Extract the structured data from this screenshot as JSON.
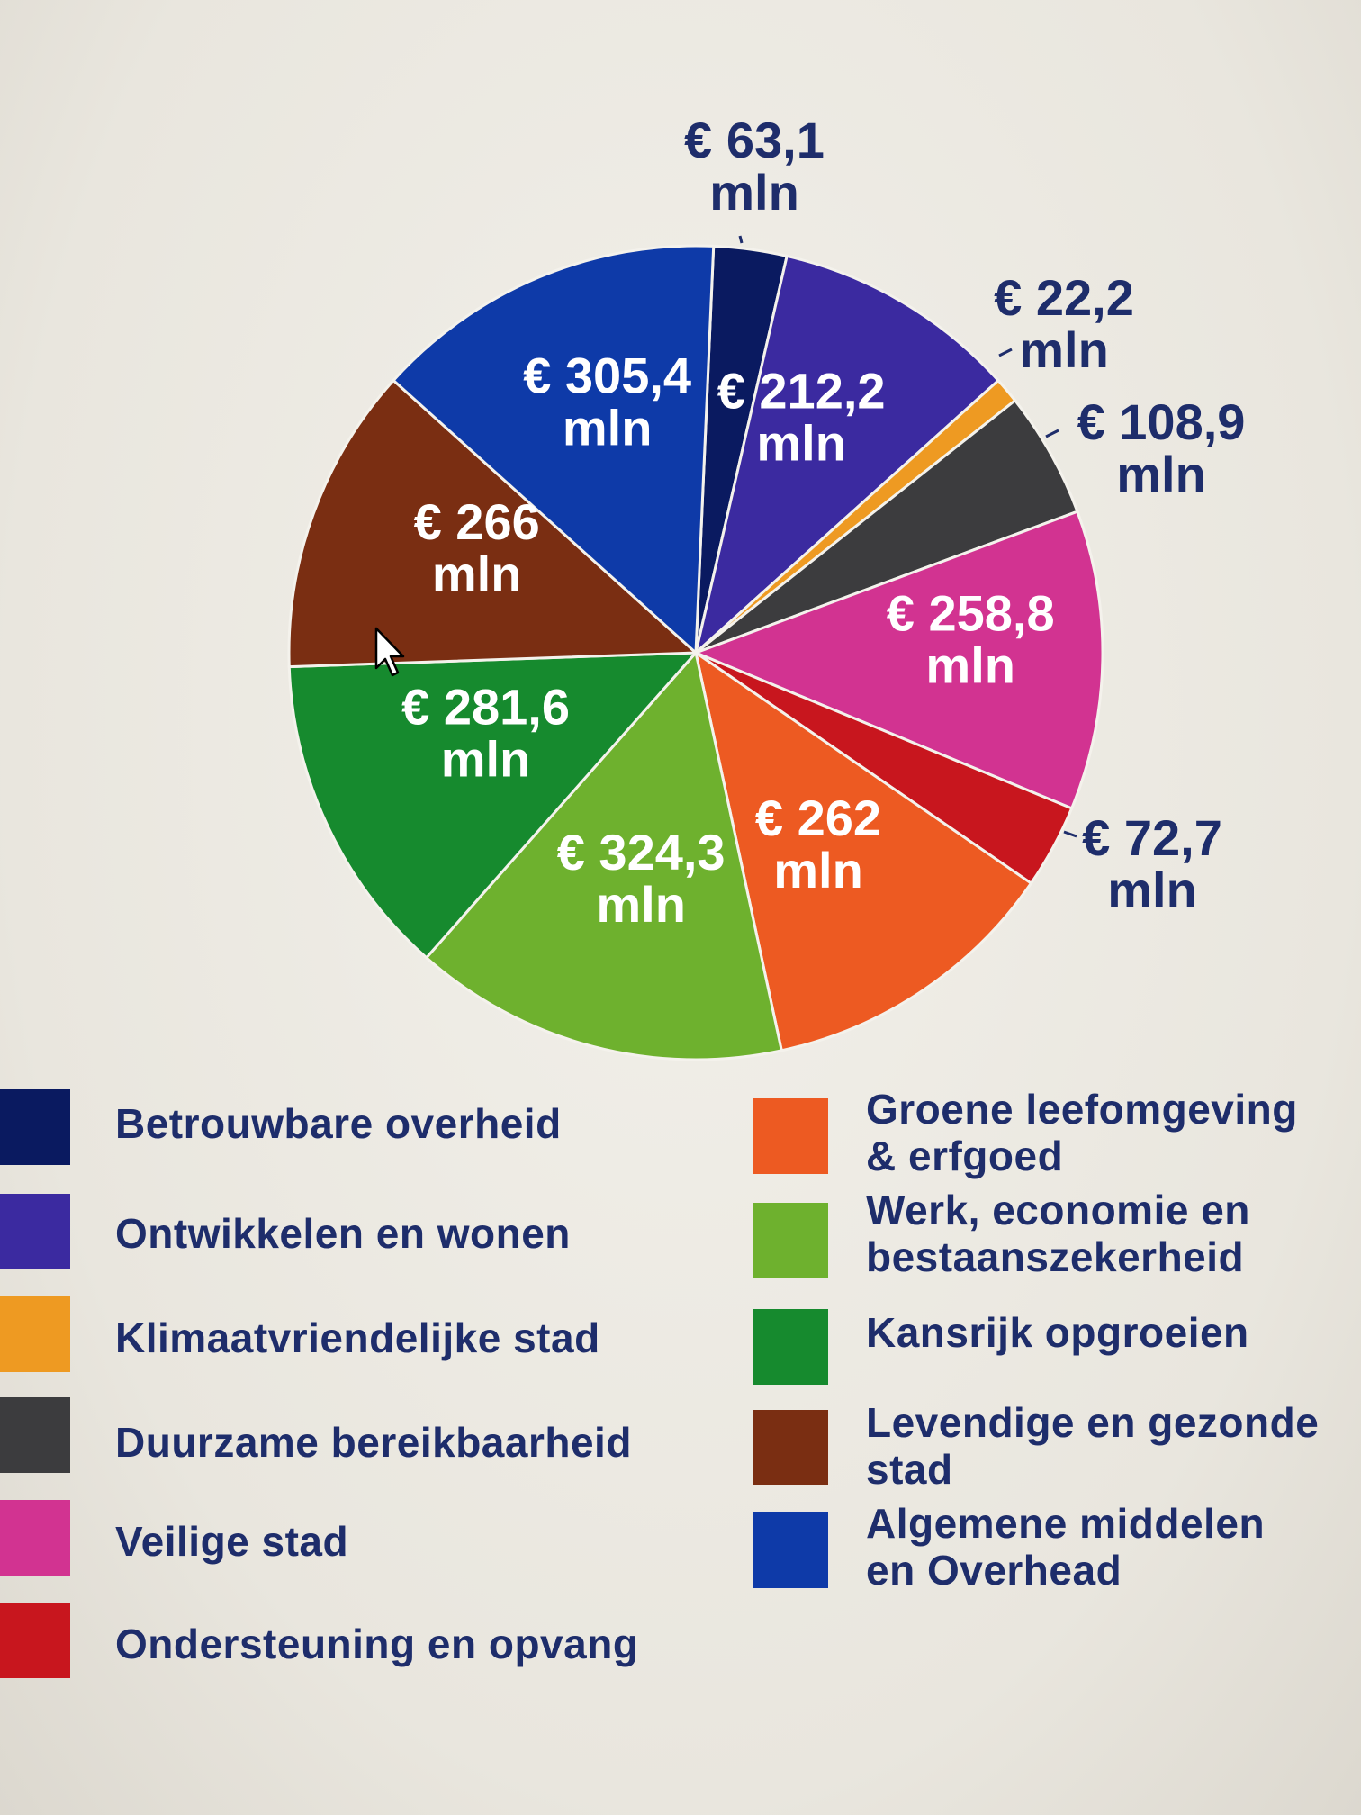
{
  "chart_data": {
    "type": "pie",
    "title": "",
    "slices": [
      {
        "category": "Betrouwbare overheid",
        "value": 63.1,
        "label": "€ 63,1\nmln",
        "color": "#0a1a60"
      },
      {
        "category": "Ontwikkelen en wonen",
        "value": 212.2,
        "label": "€ 212,2\nmln",
        "color": "#3b2aa0"
      },
      {
        "category": "Klimaatvriendelijke stad",
        "value": 22.2,
        "label": "€ 22,2\nmln",
        "color": "#ee9a22"
      },
      {
        "category": "Duurzame bereikbaarheid",
        "value": 108.9,
        "label": "€ 108,9\nmln",
        "color": "#3c3c3e"
      },
      {
        "category": "Veilige stad",
        "value": 258.8,
        "label": "€ 258,8\nmln",
        "color": "#d23391"
      },
      {
        "category": "Ondersteuning en opvang",
        "value": 72.7,
        "label": "€ 72,7\nmln",
        "color": "#c8161e"
      },
      {
        "category": "Groene leefomgeving & erfgoed",
        "value": 262,
        "label": "€ 262\nmln",
        "color": "#ed5a22"
      },
      {
        "category": "Werk, economie en bestaanszekerheid",
        "value": 324.3,
        "label": "€ 324,3\nmln",
        "color": "#6eb12e"
      },
      {
        "category": "Kansrijk opgroeien",
        "value": 281.6,
        "label": "€ 281,6\nmln",
        "color": "#168a2e"
      },
      {
        "category": "Levendige en gezonde stad",
        "value": 266,
        "label": "€ 266\nmln",
        "color": "#7a2e12"
      },
      {
        "category": "Algemene middelen en Overhead",
        "value": 305.4,
        "label": "€ 305,4\nmln",
        "color": "#0e3aa8"
      }
    ],
    "legend": {
      "left": [
        {
          "label": "Betrouwbare overheid",
          "color": "#0a1a60"
        },
        {
          "label": "Ontwikkelen en wonen",
          "color": "#3b2aa0"
        },
        {
          "label": "Klimaatvriendelijke stad",
          "color": "#ee9a22"
        },
        {
          "label": "Duurzame bereikbaarheid",
          "color": "#3c3c3e"
        },
        {
          "label": "Veilige stad",
          "color": "#d23391"
        },
        {
          "label": "Ondersteuning en opvang",
          "color": "#c8161e"
        }
      ],
      "right": [
        {
          "label": "Groene leefomgeving\n& erfgoed",
          "color": "#ed5a22"
        },
        {
          "label": "Werk, economie en\nbestaanszekerheid",
          "color": "#6eb12e"
        },
        {
          "label": "Kansrijk opgroeien",
          "color": "#168a2e"
        },
        {
          "label": "Levendige en gezonde\nstad",
          "color": "#7a2e12"
        },
        {
          "label": "Algemene middelen\nen Overhead",
          "color": "#0e3aa8"
        }
      ]
    }
  }
}
